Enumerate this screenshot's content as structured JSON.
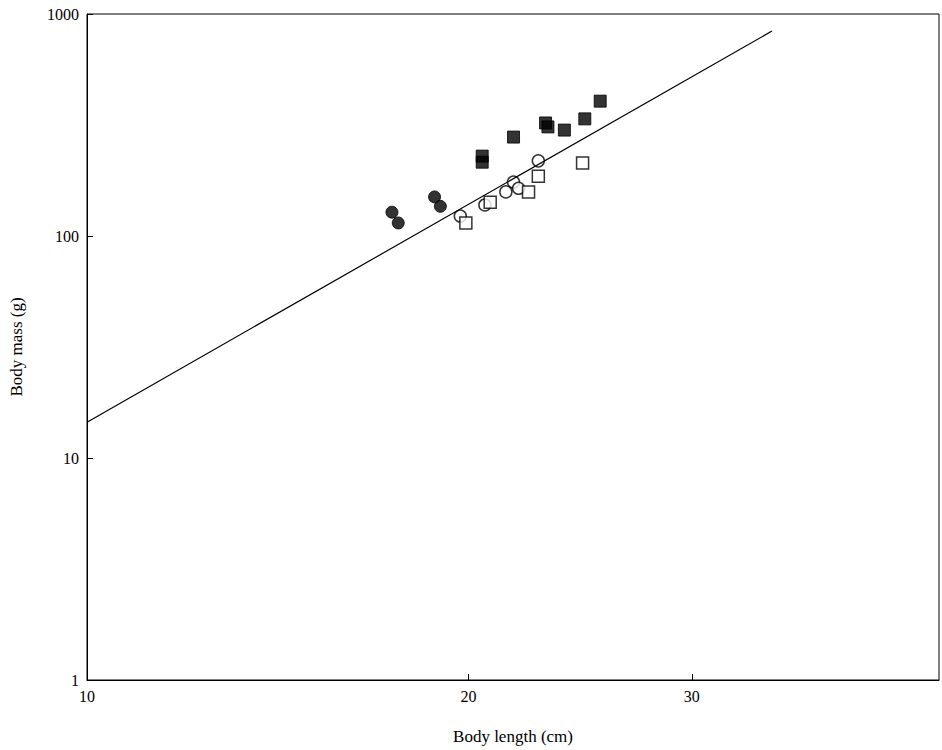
{
  "chart_data": {
    "type": "scatter",
    "x_label": "Body length (cm)",
    "y_label": "Body mass (g)",
    "log": true,
    "grid": false,
    "xlim": [
      10,
      47
    ],
    "xticks": [
      10,
      20,
      30
    ],
    "ylim": [
      1,
      1000
    ],
    "yticks": [
      1,
      10,
      100,
      1000
    ],
    "series": [
      {
        "type": "scatter",
        "marker": "circle",
        "color": "#000000",
        "x": [
          17.4,
          17.6,
          18.8,
          19.0
        ],
        "values": [
          128,
          114.5,
          150,
          136
        ]
      },
      {
        "type": "scatter",
        "marker": "square",
        "color": "#000000",
        "x": [
          20.5,
          20.5,
          21.7,
          23.0,
          23.1,
          23.8,
          24.7,
          25.4
        ],
        "values": [
          229,
          215,
          279,
          323,
          310,
          300,
          337,
          405
        ]
      },
      {
        "type": "scatter",
        "marker": "open_circle",
        "color": "#000000",
        "x": [
          19.7,
          20.6,
          21.4,
          21.7,
          21.9,
          22.7
        ],
        "values": [
          123,
          138,
          158,
          175,
          164,
          218
        ]
      },
      {
        "type": "scatter",
        "marker": "open_square",
        "color": "#000000",
        "x": [
          19.9,
          20.8,
          22.3,
          22.7,
          24.6
        ],
        "values": [
          114.5,
          142,
          158,
          186,
          213
        ]
      },
      {
        "type": "line",
        "line_style": "solid",
        "color": "#000000",
        "x": [
          10,
          34.7
        ],
        "values": [
          14.5,
          838
        ]
      }
    ]
  }
}
